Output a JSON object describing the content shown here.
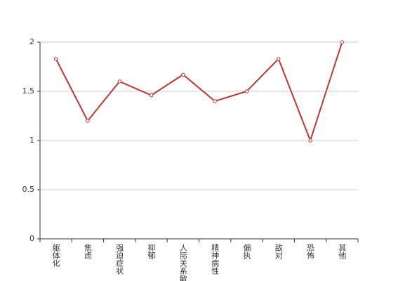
{
  "chart_data": {
    "type": "line",
    "categories": [
      "躯体化",
      "焦虑",
      "强迫症状",
      "抑郁",
      "人际关系敏感",
      "精神病性",
      "偏执",
      "敌对",
      "恐怖",
      "其他"
    ],
    "values": [
      1.83,
      1.2,
      1.6,
      1.46,
      1.67,
      1.4,
      1.5,
      1.83,
      1.0,
      2.0
    ],
    "color": "#c23531",
    "ylim": [
      0,
      2
    ],
    "yticks": [
      0,
      0.5,
      1,
      1.5,
      2
    ],
    "grid": true
  }
}
